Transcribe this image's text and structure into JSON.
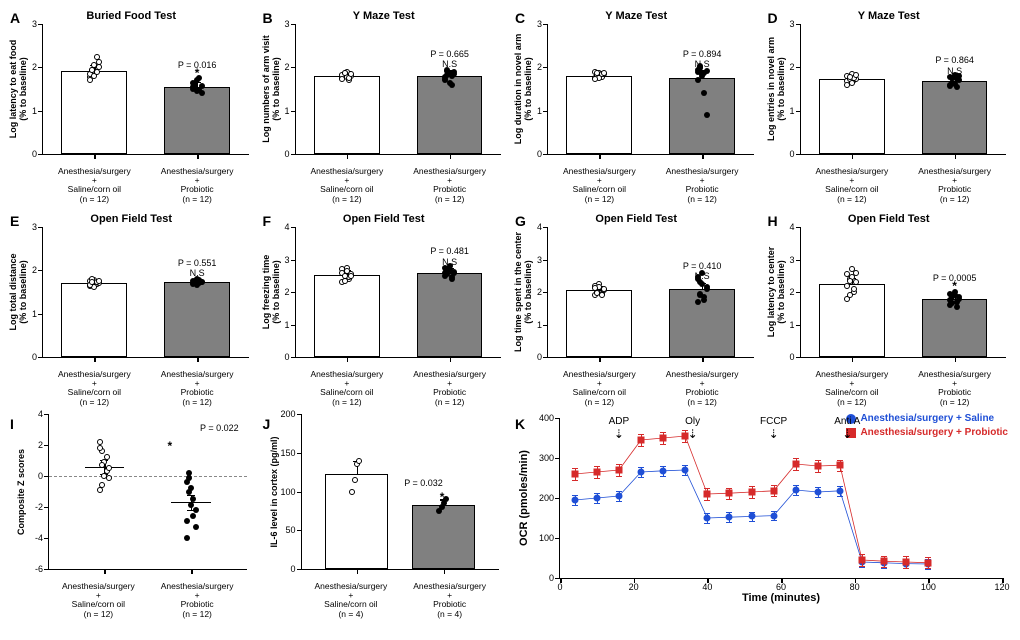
{
  "colors": {
    "barEmpty": "#ffffff",
    "barFilled": "#808080",
    "ptOpen": "#ffffff",
    "ptClosed": "#000000",
    "seriesBlue": "#1f4fd6",
    "seriesRed": "#d62a2a"
  },
  "barPanels": [
    {
      "id": "A",
      "title": "Buried Food Test",
      "ylabel": "Log latency to eat food\n(% to baseline)",
      "ymax": 3,
      "bars": [
        1.92,
        1.55
      ],
      "err": [
        0.1,
        0.09
      ],
      "p": "P = 0.016",
      "sig": "*",
      "n": "(n = 12)"
    },
    {
      "id": "B",
      "title": "Y Maze Test",
      "ylabel": "Log numbers of arm visit\n(% to baseline)",
      "ymax": 3,
      "bars": [
        1.8,
        1.8
      ],
      "err": [
        0.08,
        0.1
      ],
      "p": "P = 0.665",
      "sig": "N.S",
      "n": "(n = 12)"
    },
    {
      "id": "C",
      "title": "Y Maze Test",
      "ylabel": "Log duration in novel arm\n(% to baseline)",
      "ymax": 3,
      "bars": [
        1.8,
        1.75
      ],
      "err": [
        0.07,
        0.15
      ],
      "p": "P = 0.894",
      "sig": "N.S",
      "n": "(n = 12)"
    },
    {
      "id": "D",
      "title": "Y Maze Test",
      "ylabel": "Log entries in novel arm\n(% to baseline)",
      "ymax": 3,
      "bars": [
        1.72,
        1.68
      ],
      "err": [
        0.06,
        0.07
      ],
      "p": "P = 0.864",
      "sig": "N.S",
      "n": "(n = 12)"
    },
    {
      "id": "E",
      "title": "Open Field Test",
      "ylabel": "Log total distance\n(% to baseline)",
      "ymax": 3,
      "bars": [
        1.7,
        1.72
      ],
      "err": [
        0.05,
        0.04
      ],
      "p": "P = 0.551",
      "sig": "N.S",
      "n": "(n = 12)"
    },
    {
      "id": "F",
      "title": "Open Field Test",
      "ylabel": "Log freezing time\n(% to baseline)",
      "ymax": 4,
      "bars": [
        2.52,
        2.6
      ],
      "err": [
        0.12,
        0.1
      ],
      "p": "P = 0.481",
      "sig": "N.S",
      "n": "(n = 12)"
    },
    {
      "id": "G",
      "title": "Open Field Test",
      "ylabel": "Log time spent in the center\n(% to baseline)",
      "ymax": 4,
      "bars": [
        2.05,
        2.1
      ],
      "err": [
        0.1,
        0.15
      ],
      "p": "P = 0.410",
      "sig": "N.S",
      "n": "(n = 12)"
    },
    {
      "id": "H",
      "title": "Open Field Test",
      "ylabel": "Log latency to center\n(% to baseline)",
      "ymax": 4,
      "bars": [
        2.25,
        1.78
      ],
      "err": [
        0.15,
        0.1
      ],
      "p": "P = 0.0005",
      "sig": "*",
      "n": "(n = 12)"
    }
  ],
  "barPoints": {
    "A": [
      [
        1.78,
        1.88,
        2.05,
        2.25,
        2.12,
        1.85,
        1.95,
        1.8,
        1.9,
        2.0,
        1.7,
        1.95
      ],
      [
        1.5,
        1.6,
        1.7,
        1.75,
        1.4,
        1.55,
        1.62,
        1.45,
        1.48,
        1.58,
        1.65,
        1.52
      ]
    ],
    "B": [
      [
        1.75,
        1.85,
        1.9,
        1.7,
        1.8,
        1.82,
        1.88,
        1.78,
        1.76,
        1.84,
        1.72,
        1.86
      ],
      [
        1.7,
        1.95,
        1.88,
        1.6,
        1.85,
        1.78,
        1.92,
        1.65,
        1.8,
        1.9,
        1.72,
        1.82
      ]
    ],
    "C": [
      [
        1.75,
        1.82,
        1.88,
        1.78,
        1.85,
        1.9,
        1.8,
        1.76,
        1.84,
        1.86,
        1.72,
        1.88
      ],
      [
        1.95,
        2.0,
        1.85,
        1.4,
        0.9,
        1.9,
        1.98,
        1.8,
        1.88,
        1.92,
        1.7,
        2.02
      ]
    ],
    "D": [
      [
        1.68,
        1.78,
        1.85,
        1.7,
        1.74,
        1.8,
        1.72,
        1.65,
        1.76,
        1.82,
        1.6,
        1.78
      ],
      [
        1.6,
        1.75,
        1.82,
        1.55,
        1.7,
        1.78,
        1.65,
        1.62,
        1.72,
        1.8,
        1.58,
        1.76
      ]
    ],
    "E": [
      [
        1.65,
        1.72,
        1.78,
        1.68,
        1.7,
        1.75,
        1.8,
        1.62,
        1.74,
        1.76,
        1.66,
        1.72
      ],
      [
        1.68,
        1.75,
        1.8,
        1.7,
        1.72,
        1.76,
        1.74,
        1.66,
        1.78,
        1.72,
        1.7,
        1.74
      ]
    ],
    "F": [
      [
        2.3,
        2.6,
        2.75,
        2.4,
        2.55,
        2.7,
        2.35,
        2.65,
        2.45,
        2.5,
        2.58,
        2.48
      ],
      [
        2.5,
        2.7,
        2.8,
        2.45,
        2.6,
        2.75,
        2.55,
        2.68,
        2.4,
        2.62,
        2.58,
        2.72
      ]
    ],
    "G": [
      [
        1.9,
        2.1,
        2.25,
        1.95,
        2.05,
        2.2,
        2.0,
        2.15,
        1.92,
        2.08,
        2.12,
        1.98
      ],
      [
        1.7,
        2.3,
        2.6,
        1.85,
        2.1,
        2.45,
        1.9,
        2.25,
        1.75,
        2.15,
        2.4,
        1.95
      ]
    ],
    "H": [
      [
        1.8,
        2.4,
        2.7,
        2.0,
        2.3,
        2.55,
        1.9,
        2.45,
        2.1,
        2.6,
        2.2,
        2.35
      ],
      [
        1.6,
        1.85,
        2.0,
        1.55,
        1.8,
        1.95,
        1.65,
        1.9,
        1.7,
        1.85,
        1.75,
        1.92
      ]
    ]
  },
  "groups": {
    "left": {
      "line1": "Anesthesia/surgery",
      "line2": "+",
      "line3": "Saline/corn oil"
    },
    "right": {
      "line1": "Anesthesia/surgery",
      "line2": "+",
      "line3": "Probiotic"
    }
  },
  "panelI": {
    "title": "",
    "ylabel": "Composite Z scores",
    "ymin": -6,
    "ymax": 4,
    "ytick": 2,
    "p": "P = 0.022",
    "sig": "*",
    "n": "(n = 12)",
    "means": [
      0.6,
      -1.7
    ],
    "err": [
      0.45,
      0.5
    ],
    "points": [
      [
        2.2,
        1.6,
        0.9,
        0.3,
        -0.1,
        1.8,
        -0.6,
        0.0,
        1.2,
        0.5,
        -0.9,
        0.7
      ],
      [
        -0.4,
        -1.0,
        -1.9,
        -2.6,
        -3.3,
        -4.0,
        0.2,
        -0.8,
        -1.5,
        -2.2,
        -2.9,
        -0.1
      ]
    ]
  },
  "panelJ": {
    "ylabel": "IL-6 level in cortex (pg/ml)",
    "ymin": 0,
    "ymax": 200,
    "ytick": 50,
    "p": "P = 0.032",
    "sig": "*",
    "n": "(n = 4)",
    "means": [
      122,
      82
    ],
    "err": [
      18,
      8
    ],
    "points": [
      [
        100,
        115,
        135,
        140
      ],
      [
        75,
        80,
        85,
        90
      ]
    ]
  },
  "panelK": {
    "ylabel": "OCR (pmoles/min)",
    "xlabel": "Time (minutes)",
    "xmin": 0,
    "xmax": 120,
    "xtick": 20,
    "ymin": 0,
    "ymax": 400,
    "ytick": 100,
    "legend": [
      {
        "label": "Anesthesia/surgery + Saline",
        "color": "#1f4fd6",
        "shape": "circle"
      },
      {
        "label": "Anesthesia/surgery + Probiotic",
        "color": "#d62a2a",
        "shape": "square"
      }
    ],
    "injections": [
      {
        "label": "ADP",
        "x": 16
      },
      {
        "label": "Oly",
        "x": 36
      },
      {
        "label": "FCCP",
        "x": 58
      },
      {
        "label": "Anti A",
        "x": 78
      }
    ],
    "series": [
      {
        "color": "#1f4fd6",
        "shape": "circle",
        "err": 12,
        "points": [
          [
            4,
            195
          ],
          [
            10,
            200
          ],
          [
            16,
            205
          ],
          [
            22,
            265
          ],
          [
            28,
            268
          ],
          [
            34,
            270
          ],
          [
            40,
            150
          ],
          [
            46,
            152
          ],
          [
            52,
            154
          ],
          [
            58,
            156
          ],
          [
            64,
            220
          ],
          [
            70,
            215
          ],
          [
            76,
            218
          ],
          [
            82,
            40
          ],
          [
            88,
            38
          ],
          [
            94,
            36
          ],
          [
            100,
            35
          ]
        ]
      },
      {
        "color": "#d62a2a",
        "shape": "square",
        "err": 14,
        "points": [
          [
            4,
            260
          ],
          [
            10,
            265
          ],
          [
            16,
            270
          ],
          [
            22,
            345
          ],
          [
            28,
            350
          ],
          [
            34,
            355
          ],
          [
            40,
            210
          ],
          [
            46,
            212
          ],
          [
            52,
            215
          ],
          [
            58,
            218
          ],
          [
            64,
            285
          ],
          [
            70,
            280
          ],
          [
            76,
            282
          ],
          [
            82,
            45
          ],
          [
            88,
            42
          ],
          [
            94,
            40
          ],
          [
            100,
            38
          ]
        ]
      }
    ]
  }
}
